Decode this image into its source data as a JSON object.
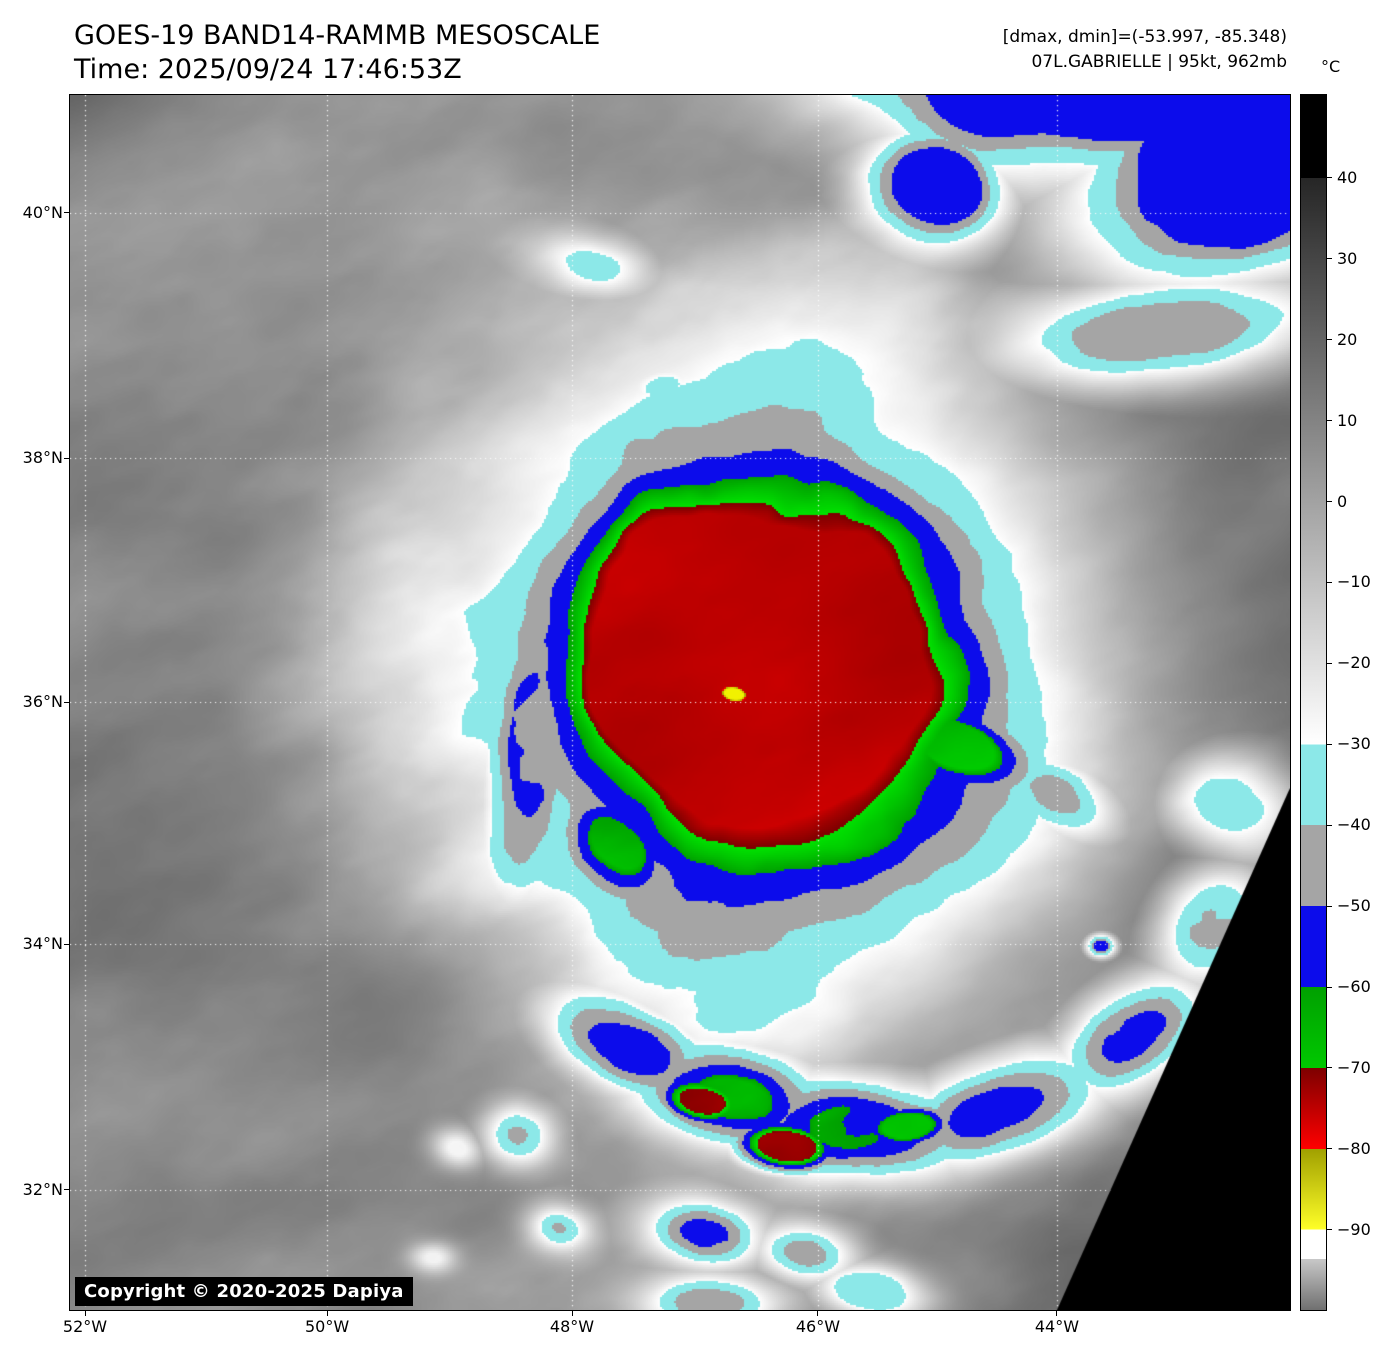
{
  "header": {
    "title": "GOES-19 BAND14-RAMMB MESOSCALE",
    "time": "Time: 2025/09/24 17:46:53Z",
    "dmax_dmin": "[dmax, dmin]=(-53.997, -85.348)",
    "storm": "07L.GABRIELLE | 95kt, 962mb"
  },
  "map": {
    "copyright": "Copyright © 2020-2025 Dapiya",
    "lat_ticks": [
      {
        "label": "40°N",
        "f": 0.0971
      },
      {
        "label": "38°N",
        "f": 0.2988
      },
      {
        "label": "36°N",
        "f": 0.4996
      },
      {
        "label": "34°N",
        "f": 0.6988
      },
      {
        "label": "32°N",
        "f": 0.9012
      }
    ],
    "lon_ticks": [
      {
        "label": "52°W",
        "f": 0.0123
      },
      {
        "label": "50°W",
        "f": 0.2107
      },
      {
        "label": "48°W",
        "f": 0.4115
      },
      {
        "label": "46°W",
        "f": 0.6131
      },
      {
        "label": "44°W",
        "f": 0.809
      }
    ]
  },
  "colorbar": {
    "unit": "°C",
    "ticks": [
      {
        "label": "40",
        "f": 0.0683
      },
      {
        "label": "30",
        "f": 0.1349
      },
      {
        "label": "20",
        "f": 0.2015
      },
      {
        "label": "10",
        "f": 0.2681
      },
      {
        "label": "0",
        "f": 0.3346
      },
      {
        "label": "−10",
        "f": 0.4012
      },
      {
        "label": "−20",
        "f": 0.4678
      },
      {
        "label": "−30",
        "f": 0.5344
      },
      {
        "label": "−40",
        "f": 0.601
      },
      {
        "label": "−50",
        "f": 0.6676
      },
      {
        "label": "−60",
        "f": 0.7342
      },
      {
        "label": "−70",
        "f": 0.8007
      },
      {
        "label": "−80",
        "f": 0.8673
      },
      {
        "label": "−90",
        "f": 0.9339
      }
    ],
    "segments": [
      {
        "f0": 0.0,
        "f1": 0.0683,
        "c1": "#000000",
        "c2": "#000000",
        "range": "above 40"
      },
      {
        "f0": 0.0683,
        "f1": 0.5344,
        "c1": "#262626",
        "c2": "#ffffff",
        "range": "40 to -30"
      },
      {
        "f0": 0.5344,
        "f1": 0.601,
        "c1": "#8ce8e8",
        "c2": "#8ce8e8",
        "range": "-30 to -40"
      },
      {
        "f0": 0.601,
        "f1": 0.6676,
        "c1": "#a5a5a5",
        "c2": "#a5a5a5",
        "range": "-40 to -50"
      },
      {
        "f0": 0.6676,
        "f1": 0.7342,
        "c1": "#0c0ceb",
        "c2": "#0c0ceb",
        "range": "-50 to -60"
      },
      {
        "f0": 0.7342,
        "f1": 0.8007,
        "c1": "#00a000",
        "c2": "#00c800",
        "range": "-60 to -70"
      },
      {
        "f0": 0.8007,
        "f1": 0.8673,
        "c1": "#7d0000",
        "c2": "#ff0000",
        "range": "-70 to -80"
      },
      {
        "f0": 0.8673,
        "f1": 0.9339,
        "c1": "#a0a000",
        "c2": "#ffff28",
        "range": "-80 to -90"
      },
      {
        "f0": 0.9339,
        "f1": 0.958,
        "c1": "#ffffff",
        "c2": "#ffffff",
        "range": "-90 to -93"
      },
      {
        "f0": 0.958,
        "f1": 1.0,
        "c1": "#c8c8c8",
        "c2": "#707070",
        "range": "below -93"
      }
    ]
  }
}
